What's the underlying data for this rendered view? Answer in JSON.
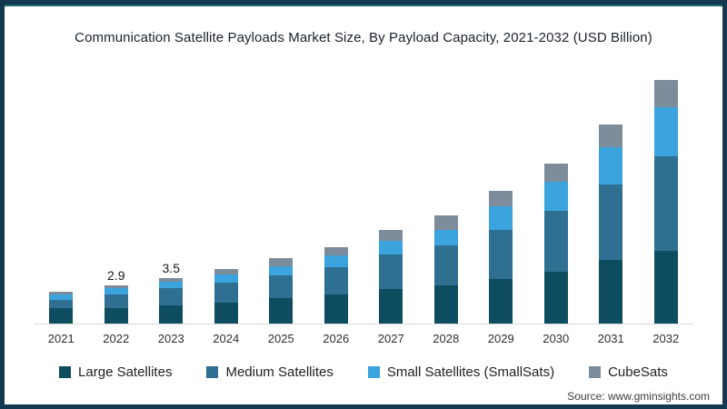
{
  "page": {
    "title": "Communication Satellite Payloads Market Size, By Payload Capacity, 2021-2032 (USD Billion)"
  },
  "source": {
    "label": "Source: www.gminsights.com"
  },
  "colors": {
    "frame_border": "#14384F",
    "frame_accent": "#1B6775",
    "axis_line": "#D9D9D9",
    "large_satellites": "#0E4D60",
    "medium_satellites": "#2E6F92",
    "small_satellites": "#3BA3DD",
    "cubesats": "#7D8C9B"
  },
  "chart_data": {
    "type": "bar",
    "stacked": true,
    "title": "Communication Satellite Payloads Market Size, By Payload Capacity, 2021-2032 (USD Billion)",
    "xlabel": "",
    "ylabel": "",
    "ylim": [
      0,
      20
    ],
    "grid": false,
    "legend_position": "bottom",
    "categories": [
      "2021",
      "2022",
      "2023",
      "2024",
      "2025",
      "2026",
      "2027",
      "2028",
      "2029",
      "2030",
      "2031",
      "2032"
    ],
    "series": [
      {
        "name": "Large Satellites",
        "color": "#0E4D60",
        "values": [
          1.2,
          1.2,
          1.4,
          1.6,
          1.9,
          2.2,
          2.6,
          2.9,
          3.4,
          3.9,
          4.8,
          5.5
        ]
      },
      {
        "name": "Medium Satellites",
        "color": "#2E6F92",
        "values": [
          0.6,
          1.0,
          1.3,
          1.5,
          1.7,
          2.1,
          2.6,
          3.0,
          3.7,
          4.6,
          5.7,
          7.2
        ]
      },
      {
        "name": "Small Satellites (SmallSats)",
        "color": "#3BA3DD",
        "values": [
          0.4,
          0.5,
          0.5,
          0.6,
          0.7,
          0.9,
          1.0,
          1.2,
          1.8,
          2.2,
          2.8,
          3.7
        ]
      },
      {
        "name": "CubeSats",
        "color": "#7D8C9B",
        "values": [
          0.2,
          0.2,
          0.3,
          0.4,
          0.6,
          0.6,
          0.8,
          1.1,
          1.2,
          1.4,
          1.7,
          2.1
        ]
      }
    ],
    "totals": [
      2.4,
      2.9,
      3.5,
      4.1,
      4.9,
      5.8,
      7.0,
      8.2,
      10.1,
      12.1,
      15.0,
      18.5
    ],
    "total_labels": [
      "",
      "2.9",
      "3.5",
      "",
      "",
      "",
      "",
      "",
      "",
      "",
      "",
      ""
    ]
  }
}
